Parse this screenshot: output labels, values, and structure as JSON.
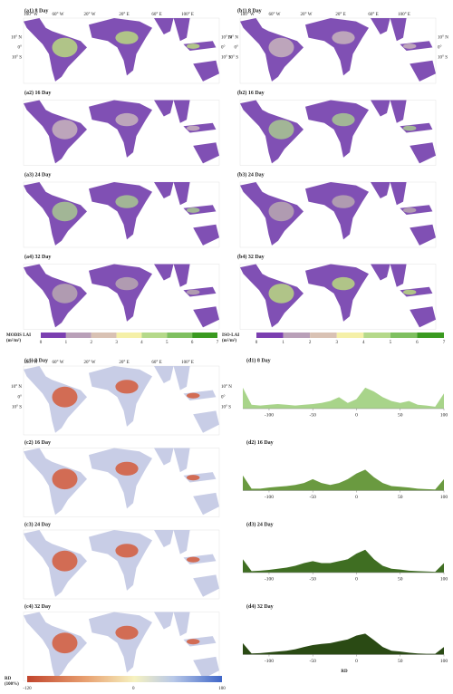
{
  "panels_a": [
    "(a1) 8 Day",
    "(a2) 16 Day",
    "(a3) 24 Day",
    "(a4) 32 Day"
  ],
  "panels_b": [
    "(b1) 8 Day",
    "(b2) 16 Day",
    "(b3) 24 Day",
    "(b4) 32 Day"
  ],
  "panels_c": [
    "(c1) 8 Day",
    "(c2) 16 Day",
    "(c3) 24 Day",
    "(c4) 32 Day"
  ],
  "map_labels": {
    "lon": [
      "100° W",
      "60° W",
      "20° W",
      "20° E",
      "60° E",
      "100° E"
    ],
    "lat": [
      "10° N",
      "0°",
      "10° S"
    ]
  },
  "legend_modis": {
    "title": "MODIS LAI",
    "unit": "(m²/m²)",
    "ticks": [
      0,
      1,
      2,
      3,
      4,
      5,
      6,
      7
    ]
  },
  "legend_iso": {
    "title": "ISO-LAI",
    "unit": "(m²/m²)",
    "ticks": [
      0,
      1,
      2,
      3,
      4,
      5,
      6,
      7
    ]
  },
  "legend_rd": {
    "title": "RD",
    "unit": "(100%)",
    "ticks": [
      -120,
      0,
      100
    ]
  },
  "chart_data": {
    "type": "area",
    "x_label": "RD",
    "x": [
      -130,
      -120,
      -110,
      -100,
      -90,
      -80,
      -70,
      -60,
      -50,
      -40,
      -30,
      -20,
      -10,
      0,
      10,
      20,
      30,
      40,
      50,
      60,
      70,
      80,
      90,
      100
    ],
    "xlim": [
      -130,
      100
    ],
    "xticks": [
      -100,
      -50,
      0,
      50,
      100
    ],
    "ylim": [
      0,
      1
    ],
    "series": [
      {
        "name": "(d1) 8 Day",
        "color": "#a8d48a",
        "values": [
          0.55,
          0.1,
          0.08,
          0.1,
          0.12,
          0.1,
          0.08,
          0.1,
          0.12,
          0.15,
          0.2,
          0.3,
          0.15,
          0.25,
          0.55,
          0.45,
          0.3,
          0.2,
          0.15,
          0.2,
          0.1,
          0.08,
          0.05,
          0.4
        ]
      },
      {
        "name": "(d2) 16 Day",
        "color": "#6a9a40",
        "values": [
          0.4,
          0.05,
          0.05,
          0.08,
          0.1,
          0.12,
          0.15,
          0.2,
          0.3,
          0.2,
          0.15,
          0.2,
          0.3,
          0.45,
          0.55,
          0.35,
          0.2,
          0.12,
          0.1,
          0.08,
          0.05,
          0.04,
          0.03,
          0.3
        ]
      },
      {
        "name": "(d3) 24 Day",
        "color": "#3f6e22",
        "values": [
          0.35,
          0.04,
          0.05,
          0.07,
          0.1,
          0.13,
          0.18,
          0.25,
          0.3,
          0.25,
          0.25,
          0.3,
          0.35,
          0.5,
          0.6,
          0.35,
          0.18,
          0.1,
          0.08,
          0.05,
          0.04,
          0.03,
          0.02,
          0.25
        ]
      },
      {
        "name": "(d4) 32 Day",
        "color": "#2a4a14",
        "values": [
          0.3,
          0.03,
          0.04,
          0.06,
          0.08,
          0.1,
          0.14,
          0.2,
          0.25,
          0.28,
          0.3,
          0.35,
          0.4,
          0.5,
          0.55,
          0.38,
          0.2,
          0.1,
          0.08,
          0.05,
          0.03,
          0.02,
          0.02,
          0.2
        ]
      }
    ]
  }
}
